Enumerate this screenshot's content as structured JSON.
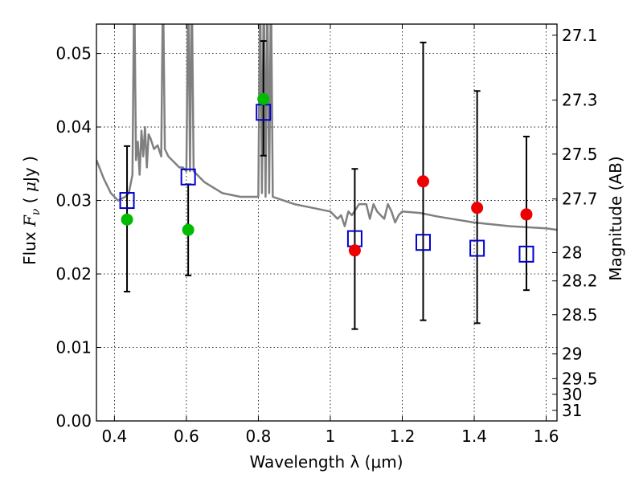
{
  "chart_data": {
    "type": "scatter",
    "xlabel": "Wavelength  λ (μm)",
    "ylabel": "Flux  F_ν  ( μJy )",
    "y2label": "Magnitude (AB)",
    "xlim": [
      0.35,
      1.63
    ],
    "ylim": [
      0.0,
      0.054
    ],
    "grid": true,
    "xticks": [
      0.4,
      0.6,
      0.8,
      1.0,
      1.2,
      1.4,
      1.6
    ],
    "xtick_labels": [
      "0.4",
      "0.6",
      "0.8",
      "1",
      "1.2",
      "1.4",
      "1.6"
    ],
    "yticks": [
      0.0,
      0.01,
      0.02,
      0.03,
      0.04,
      0.05
    ],
    "ytick_labels": [
      "0.00",
      "0.01",
      "0.02",
      "0.03",
      "0.04",
      "0.05"
    ],
    "y2ticks": [
      27.1,
      27.3,
      27.5,
      27.7,
      28,
      28.2,
      28.5,
      29,
      29.5,
      30,
      31
    ],
    "y2tick_labels": [
      "27.1",
      "27.3",
      "27.5",
      "27.7",
      "28",
      "28.2",
      "28.5",
      "29",
      "29.5",
      "30",
      "31"
    ],
    "colors": {
      "spectrum": "#808080",
      "model": "#0000cc",
      "optical": "#00bb00",
      "infrared": "#ee0000",
      "errorbar": "#000000"
    },
    "series": [
      {
        "kind": "spectrum",
        "x": [
          0.35,
          0.37,
          0.39,
          0.41,
          0.43,
          0.44,
          0.45,
          0.455,
          0.46,
          0.465,
          0.47,
          0.475,
          0.48,
          0.485,
          0.49,
          0.495,
          0.5,
          0.51,
          0.52,
          0.53,
          0.535,
          0.54,
          0.55,
          0.56,
          0.57,
          0.58,
          0.59,
          0.6,
          0.605,
          0.61,
          0.615,
          0.62,
          0.63,
          0.65,
          0.7,
          0.75,
          0.8,
          0.805,
          0.81,
          0.815,
          0.82,
          0.825,
          0.83,
          0.835,
          0.84,
          0.9,
          0.95,
          1.0,
          1.02,
          1.03,
          1.04,
          1.05,
          1.06,
          1.08,
          1.1,
          1.11,
          1.12,
          1.13,
          1.14,
          1.15,
          1.16,
          1.17,
          1.18,
          1.19,
          1.2,
          1.25,
          1.3,
          1.4,
          1.5,
          1.6,
          1.63
        ],
        "y": [
          0.0355,
          0.033,
          0.031,
          0.03,
          0.0305,
          0.031,
          0.0335,
          0.06,
          0.0355,
          0.038,
          0.0335,
          0.0395,
          0.036,
          0.04,
          0.0345,
          0.039,
          0.0385,
          0.037,
          0.0375,
          0.036,
          0.06,
          0.037,
          0.036,
          0.0355,
          0.035,
          0.0345,
          0.0345,
          0.034,
          0.06,
          0.034,
          0.06,
          0.034,
          0.0335,
          0.0325,
          0.031,
          0.0305,
          0.0305,
          0.06,
          0.031,
          0.06,
          0.0305,
          0.06,
          0.031,
          0.06,
          0.0305,
          0.0295,
          0.029,
          0.0285,
          0.0275,
          0.028,
          0.0265,
          0.0285,
          0.028,
          0.0295,
          0.0295,
          0.0275,
          0.0295,
          0.0285,
          0.028,
          0.0275,
          0.0295,
          0.0285,
          0.027,
          0.028,
          0.0285,
          0.0283,
          0.0278,
          0.027,
          0.0265,
          0.0262,
          0.026
        ]
      },
      {
        "kind": "model",
        "x": [
          0.435,
          0.605,
          0.814,
          1.068,
          1.258,
          1.408,
          1.545
        ],
        "y": [
          0.03,
          0.0332,
          0.042,
          0.0248,
          0.0243,
          0.0235,
          0.0227
        ]
      },
      {
        "kind": "optical",
        "x": [
          0.435,
          0.605,
          0.814
        ],
        "y": [
          0.0274,
          0.026,
          0.0438
        ]
      },
      {
        "kind": "infrared",
        "x": [
          1.068,
          1.258,
          1.408,
          1.545
        ],
        "y": [
          0.0232,
          0.0326,
          0.029,
          0.0281
        ]
      },
      {
        "kind": "errorbar",
        "x": [
          0.435,
          0.605,
          0.814,
          1.068,
          1.258,
          1.408,
          1.545
        ],
        "low": [
          0.0176,
          0.0198,
          0.0361,
          0.0125,
          0.0137,
          0.0133,
          0.0178
        ],
        "high": [
          0.0374,
          0.0322,
          0.0517,
          0.0343,
          0.0515,
          0.0449,
          0.0387
        ]
      }
    ]
  }
}
